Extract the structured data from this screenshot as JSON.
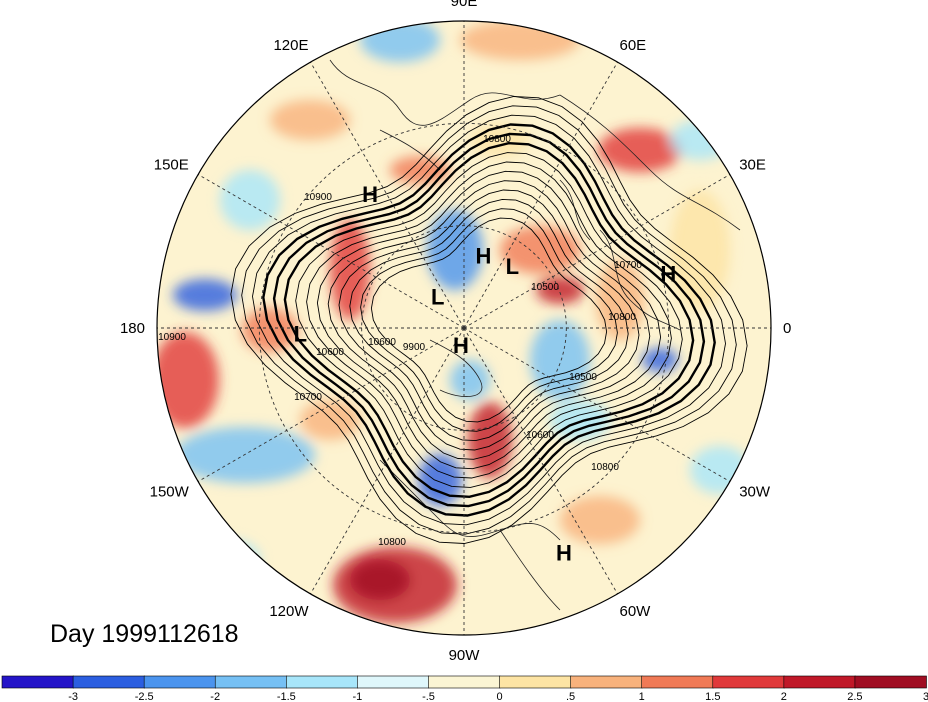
{
  "title": "Day 1999112618",
  "longitude_labels": [
    {
      "text": "90E",
      "deg": 90
    },
    {
      "text": "60E",
      "deg": 60
    },
    {
      "text": "30E",
      "deg": 30
    },
    {
      "text": "0",
      "deg": 0
    },
    {
      "text": "30W",
      "deg": -30
    },
    {
      "text": "60W",
      "deg": -60
    },
    {
      "text": "90W",
      "deg": -90
    },
    {
      "text": "120W",
      "deg": -120
    },
    {
      "text": "150W",
      "deg": -150
    },
    {
      "text": "180",
      "deg": 180
    },
    {
      "text": "150E",
      "deg": 150
    },
    {
      "text": "120E",
      "deg": 120
    }
  ],
  "pressure_centers": [
    {
      "type": "H",
      "label": "H",
      "lon": 125,
      "lat": 42
    },
    {
      "type": "H",
      "label": "H",
      "lon": 75,
      "lat": 68
    },
    {
      "type": "L",
      "label": "L",
      "lon": 52,
      "lat": 67
    },
    {
      "type": "L",
      "label": "L",
      "lon": 130,
      "lat": 78
    },
    {
      "type": "H",
      "label": "H",
      "lon": 15,
      "lat": 28
    },
    {
      "type": "L",
      "label": "L",
      "lon": -178,
      "lat": 42
    },
    {
      "type": "H",
      "label": "H",
      "lon": -100,
      "lat": 85
    },
    {
      "type": "H",
      "label": "H",
      "lon": -66,
      "lat": 18
    }
  ],
  "contour_labels": [
    "10800",
    "10900",
    "10700",
    "10600",
    "10800",
    "10900",
    "10600",
    "10700",
    "10600",
    "10500",
    "10800",
    "10800",
    "10500",
    "9900"
  ],
  "colorbar": {
    "colors": [
      "#2414c8",
      "#2b5ee0",
      "#4b94ee",
      "#76c0f4",
      "#a8e6fa",
      "#dff7fb",
      "#fbf5d4",
      "#fde4a4",
      "#f8b27c",
      "#f07a56",
      "#e0393a",
      "#c01828",
      "#a00d22"
    ],
    "tick_labels": [
      "-3",
      "-2.5",
      "-2",
      "-1.5",
      "-1",
      "-.5",
      "0",
      ".5",
      "1",
      "1.5",
      "2",
      "2.5",
      "3"
    ]
  }
}
